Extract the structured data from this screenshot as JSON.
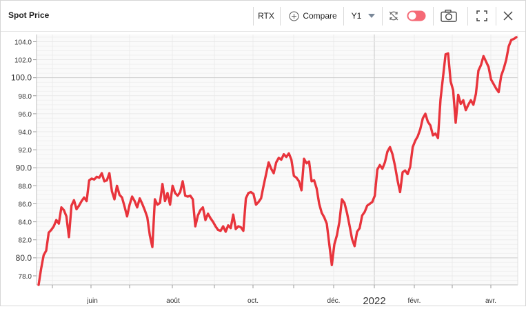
{
  "header": {
    "title": "Spot Price",
    "ticker": "RTX",
    "compare_label": "Compare",
    "period": "Y1"
  },
  "colors": {
    "line": "#e8343c",
    "toggle": "#f56a76",
    "grid": "#e9e9e9",
    "plot_bg": "#fafafa"
  },
  "icons": [
    "add-circle-icon",
    "chevron-down-icon",
    "refresh-icon",
    "toggle-switch",
    "camera-icon",
    "fullscreen-icon",
    "close-icon"
  ],
  "chart_data": {
    "type": "line",
    "series": [
      {
        "values": [
          77.0,
          78.8,
          80.3,
          80.8,
          82.8,
          83.1,
          83.5,
          84.2,
          83.8,
          85.6,
          85.3,
          84.6,
          82.3,
          85.8,
          86.4,
          85.4,
          85.8,
          86.3,
          86.7,
          86.3,
          88.6,
          88.8,
          88.7,
          89.0,
          88.9,
          89.4,
          88.5,
          88.6,
          89.4,
          87.4,
          86.5,
          88.0,
          87.0,
          86.7,
          85.7,
          84.6,
          85.9,
          86.8,
          86.3,
          85.6,
          86.6,
          86.0,
          85.3,
          84.5,
          82.5,
          81.2,
          86.5,
          85.9,
          86.1,
          88.2,
          86.3,
          87.2,
          85.9,
          88.0,
          87.2,
          86.9,
          87.3,
          88.5,
          86.9,
          86.8,
          86.9,
          86.5,
          83.5,
          84.7,
          85.3,
          85.6,
          84.2,
          84.9,
          84.4,
          84.0,
          83.5,
          83.1,
          83.0,
          83.5,
          82.9,
          83.6,
          83.3,
          84.8,
          83.2,
          83.5,
          83.4,
          83.0,
          86.6,
          87.2,
          87.3,
          87.1,
          85.9,
          86.2,
          86.6,
          88.0,
          89.3,
          90.6,
          89.9,
          89.4,
          90.6,
          91.1,
          90.9,
          91.5,
          91.2,
          91.6,
          90.9,
          89.1,
          88.9,
          88.5,
          87.5,
          91.0,
          90.5,
          90.7,
          88.5,
          88.6,
          87.7,
          86.0,
          85.0,
          84.5,
          83.8,
          81.5,
          79.2,
          81.5,
          82.5,
          84.0,
          86.5,
          86.1,
          85.0,
          83.6,
          82.1,
          81.3,
          82.9,
          83.3,
          84.7,
          85.1,
          85.8,
          86.0,
          86.2,
          86.9,
          89.8,
          90.3,
          89.9,
          90.6,
          91.8,
          92.3,
          91.5,
          90.2,
          88.6,
          87.3,
          89.5,
          89.7,
          89.3,
          90.1,
          92.3,
          93.0,
          93.5,
          94.3,
          95.5,
          96.0,
          95.1,
          94.7,
          93.6,
          93.8,
          93.3,
          97.6,
          100.1,
          102.6,
          102.7,
          99.6,
          98.6,
          95.0,
          98.1,
          97.1,
          97.5,
          96.4,
          97.0,
          97.5,
          97.0,
          98.2,
          100.8,
          101.4,
          102.4,
          101.8,
          101.2,
          99.8,
          99.3,
          98.8,
          98.4,
          100.2,
          101.0,
          102.0,
          103.5,
          104.2,
          104.3,
          104.5
        ]
      }
    ],
    "x_tick_labels": [
      "juin",
      "août",
      "oct.",
      "déc.",
      "2022",
      "févr.",
      "avr."
    ],
    "y_ticks": [
      78.0,
      80.0,
      82.0,
      84.0,
      86.0,
      88.0,
      90.0,
      92.0,
      94.0,
      96.0,
      98.0,
      100.0,
      102.0,
      104.0
    ],
    "ylim": [
      77.0,
      104.8
    ],
    "grid": true
  }
}
